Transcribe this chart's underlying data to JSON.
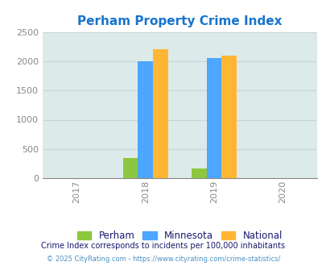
{
  "title": "Perham Property Crime Index",
  "title_color": "#1874cd",
  "years": [
    2017,
    2018,
    2019,
    2020
  ],
  "bar_groups": {
    "2018": {
      "Perham": 340,
      "Minnesota": 2000,
      "National": 2200
    },
    "2019": {
      "Perham": 160,
      "Minnesota": 2060,
      "National": 2100
    }
  },
  "bar_colors": {
    "Perham": "#8dc63f",
    "Minnesota": "#4da6ff",
    "National": "#ffb733"
  },
  "ylim": [
    0,
    2500
  ],
  "yticks": [
    0,
    500,
    1000,
    1500,
    2000,
    2500
  ],
  "xlim": [
    2016.5,
    2020.5
  ],
  "legend_labels": [
    "Perham",
    "Minnesota",
    "National"
  ],
  "footnote1": "Crime Index corresponds to incidents per 100,000 inhabitants",
  "footnote2": "© 2025 CityRating.com - https://www.cityrating.com/crime-statistics/",
  "background_color": "#ddeaea",
  "bar_width": 0.22,
  "legend_text_color": "#1a1a6e",
  "footnote1_color": "#1a1a6e",
  "footnote2_color": "#4a90c4",
  "tick_color": "#888888",
  "grid_color": "#c5d5d5"
}
